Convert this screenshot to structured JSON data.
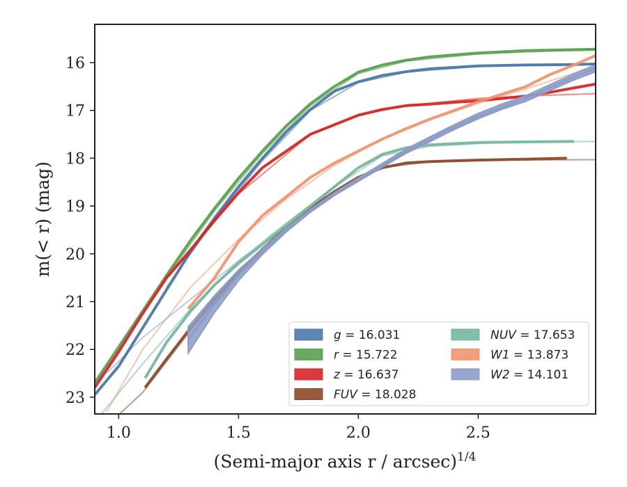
{
  "chart_data": {
    "type": "line",
    "xlabel": "(Semi-major axis r / arcsec)",
    "xlabel_exponent": "1/4",
    "ylabel": "m(< r) (mag)",
    "xlim": [
      0.9,
      2.99
    ],
    "ylim": [
      23.35,
      15.2
    ],
    "y_inverted": true,
    "x_ticks": [
      1.0,
      1.5,
      2.0,
      2.5
    ],
    "x_tick_labels": [
      "1.0",
      "1.5",
      "2.0",
      "2.5"
    ],
    "y_ticks": [
      16,
      17,
      18,
      19,
      20,
      21,
      22,
      23
    ],
    "y_tick_labels": [
      "16",
      "17",
      "18",
      "19",
      "20",
      "21",
      "22",
      "23"
    ],
    "grid": false,
    "legend_position": "bottom-right",
    "legend_columns": 2,
    "series": [
      {
        "band": "g",
        "value": "16.031",
        "color": "#4c78a8",
        "data_x": [
          0.9,
          0.95,
          1.0,
          1.1,
          1.2,
          1.3,
          1.4,
          1.5,
          1.6,
          1.7,
          1.8,
          1.9,
          2.0,
          2.1,
          2.2,
          2.3,
          2.5,
          2.7,
          2.9,
          2.99
        ],
        "data_y": [
          22.95,
          22.65,
          22.35,
          21.55,
          20.75,
          19.95,
          19.25,
          18.6,
          18.0,
          17.45,
          16.98,
          16.6,
          16.4,
          16.27,
          16.19,
          16.13,
          16.07,
          16.05,
          16.04,
          16.03
        ],
        "model_x": [
          1.2,
          1.4,
          1.6,
          1.8,
          2.0,
          2.2,
          2.5,
          2.8,
          2.99
        ],
        "model_y": [
          20.7,
          19.3,
          18.05,
          17.0,
          16.42,
          16.2,
          16.08,
          16.04,
          16.03
        ]
      },
      {
        "band": "r",
        "value": "15.722",
        "color": "#59a14f",
        "data_x": [
          0.9,
          1.0,
          1.1,
          1.2,
          1.3,
          1.4,
          1.5,
          1.6,
          1.7,
          1.8,
          1.9,
          2.0,
          2.1,
          2.2,
          2.3,
          2.5,
          2.7,
          2.9,
          2.99
        ],
        "data_y": [
          22.7,
          21.95,
          21.2,
          20.45,
          19.72,
          19.05,
          18.42,
          17.85,
          17.32,
          16.86,
          16.5,
          16.2,
          16.05,
          15.95,
          15.88,
          15.8,
          15.75,
          15.73,
          15.72
        ],
        "model_x": [
          1.2,
          1.4,
          1.6,
          1.8,
          2.0,
          2.2,
          2.5,
          2.8,
          2.99
        ],
        "model_y": [
          20.5,
          19.1,
          17.9,
          16.9,
          16.23,
          15.97,
          15.82,
          15.76,
          15.74
        ]
      },
      {
        "band": "z",
        "value": "16.637",
        "color": "#d62728",
        "data_x": [
          0.9,
          1.0,
          1.1,
          1.2,
          1.3,
          1.4,
          1.5,
          1.6,
          1.7,
          1.8,
          1.9,
          2.0,
          2.1,
          2.2,
          2.3,
          2.4,
          2.5,
          2.6,
          2.7,
          2.8,
          2.9,
          2.99
        ],
        "data_y": [
          22.8,
          22.05,
          21.25,
          20.5,
          19.92,
          19.3,
          18.72,
          18.2,
          17.85,
          17.5,
          17.3,
          17.1,
          16.98,
          16.9,
          16.87,
          16.83,
          16.8,
          16.75,
          16.7,
          16.62,
          16.53,
          16.45
        ],
        "model_x": [
          1.2,
          1.5,
          1.8,
          2.0,
          2.2,
          2.5,
          2.8,
          2.99
        ],
        "model_y": [
          20.5,
          18.75,
          17.5,
          17.1,
          16.9,
          16.75,
          16.68,
          16.65
        ]
      },
      {
        "band": "FUV",
        "value": "18.028",
        "color": "#8c4a2a",
        "data_x": [
          1.11,
          1.2,
          1.3,
          1.4,
          1.5,
          1.6,
          1.7,
          1.8,
          1.9,
          2.0,
          2.1,
          2.2,
          2.3,
          2.5,
          2.7,
          2.87
        ],
        "data_y": [
          22.8,
          22.2,
          21.55,
          20.95,
          20.4,
          19.9,
          19.45,
          19.05,
          18.7,
          18.4,
          18.2,
          18.1,
          18.07,
          18.04,
          18.02,
          18.0
        ],
        "model_x": [
          0.95,
          1.1,
          1.3,
          1.5,
          1.7,
          1.9,
          2.1,
          2.3,
          2.6,
          2.99
        ],
        "model_y": [
          23.6,
          22.9,
          21.6,
          20.4,
          19.45,
          18.7,
          18.2,
          18.07,
          18.04,
          18.03
        ]
      },
      {
        "band": "NUV",
        "value": "17.653",
        "color": "#76b7a0",
        "data_x": [
          1.11,
          1.2,
          1.3,
          1.4,
          1.5,
          1.6,
          1.7,
          1.8,
          1.9,
          2.0,
          2.1,
          2.2,
          2.3,
          2.5,
          2.7,
          2.9
        ],
        "data_y": [
          22.6,
          21.85,
          21.2,
          20.65,
          20.2,
          19.8,
          19.4,
          19.0,
          18.6,
          18.2,
          17.92,
          17.78,
          17.72,
          17.67,
          17.66,
          17.65
        ],
        "model_x": [
          0.92,
          1.1,
          1.3,
          1.5,
          1.7,
          1.9,
          2.1,
          2.3,
          2.6,
          2.99
        ],
        "model_y": [
          23.4,
          22.3,
          21.15,
          20.15,
          19.35,
          18.6,
          17.95,
          17.75,
          17.67,
          17.65
        ]
      },
      {
        "band": "W1",
        "value": "13.873",
        "color": "#f0956f",
        "data_x": [
          1.29,
          1.4,
          1.5,
          1.6,
          1.7,
          1.8,
          1.9,
          2.0,
          2.1,
          2.2,
          2.3,
          2.4,
          2.5,
          2.6,
          2.7,
          2.8,
          2.9,
          2.99
        ],
        "data_y": [
          21.15,
          20.5,
          19.75,
          19.2,
          18.8,
          18.4,
          18.1,
          17.85,
          17.6,
          17.38,
          17.18,
          17.0,
          16.82,
          16.66,
          16.5,
          16.25,
          16.05,
          15.85
        ],
        "model_x": [
          0.95,
          1.1,
          1.3,
          1.5,
          1.7,
          1.9,
          2.1,
          2.3,
          2.5,
          2.7,
          2.9,
          2.99
        ],
        "model_y": [
          23.3,
          22.0,
          20.7,
          19.7,
          18.85,
          18.15,
          17.6,
          17.2,
          16.85,
          16.55,
          16.22,
          16.05
        ]
      },
      {
        "band": "W2",
        "value": "14.101",
        "color": "#8c9cc6",
        "data_x": [
          1.29,
          1.4,
          1.5,
          1.6,
          1.7,
          1.8,
          1.9,
          2.0,
          2.1,
          2.2,
          2.3,
          2.4,
          2.5,
          2.6,
          2.7,
          2.8,
          2.9,
          2.99
        ],
        "data_y": [
          21.8,
          21.05,
          20.45,
          19.95,
          19.5,
          19.1,
          18.75,
          18.45,
          18.15,
          17.85,
          17.6,
          17.35,
          17.12,
          16.92,
          16.75,
          16.52,
          16.3,
          16.12
        ],
        "band_width": [
          0.55,
          0.35,
          0.22,
          0.12,
          0.08,
          0.06,
          0.06,
          0.07,
          0.08,
          0.09,
          0.1,
          0.1,
          0.11,
          0.11,
          0.12,
          0.12,
          0.13,
          0.14
        ],
        "model_x": [
          0.95,
          1.1,
          1.3,
          1.5,
          1.7,
          1.9,
          2.1,
          2.3,
          2.5,
          2.7,
          2.9,
          2.99
        ],
        "model_y": [
          22.5,
          21.75,
          20.95,
          20.15,
          19.45,
          18.75,
          18.15,
          17.6,
          17.15,
          16.75,
          16.3,
          16.1
        ]
      }
    ]
  }
}
